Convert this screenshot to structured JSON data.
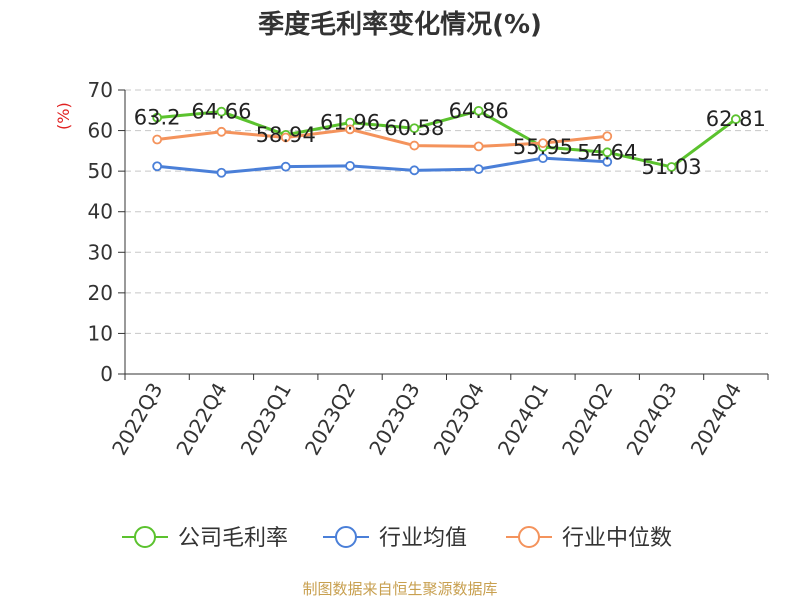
{
  "chart_data": {
    "type": "line",
    "title": "季度毛利率变化情况(%)",
    "ylabel": "(%)",
    "ylim": [
      0,
      70
    ],
    "yticks": [
      0,
      10,
      20,
      30,
      40,
      50,
      60,
      70
    ],
    "categories": [
      "2022Q3",
      "2022Q4",
      "2023Q1",
      "2023Q2",
      "2023Q3",
      "2023Q4",
      "2024Q1",
      "2024Q2",
      "2024Q3",
      "2024Q4"
    ],
    "grid": true,
    "legend_position": "bottom",
    "series": [
      {
        "name": "公司毛利率",
        "color": "#5bc22e",
        "values": [
          63.2,
          64.66,
          58.94,
          61.96,
          60.58,
          64.86,
          55.95,
          54.64,
          51.03,
          62.81
        ],
        "labels": [
          "63.2",
          "64.66",
          "58.94",
          "61.96",
          "60.58",
          "64.86",
          "55.95",
          "54.64",
          "51.03",
          "62.81"
        ]
      },
      {
        "name": "行业均值",
        "color": "#4a7fd8",
        "values": [
          51.2,
          49.6,
          51.1,
          51.3,
          50.2,
          50.5,
          53.2,
          52.3,
          null,
          null
        ]
      },
      {
        "name": "行业中位数",
        "color": "#f4935c",
        "values": [
          57.8,
          59.7,
          58.3,
          60.3,
          56.3,
          56.1,
          56.9,
          58.6,
          null,
          null
        ]
      }
    ]
  },
  "source": "制图数据来自恒生聚源数据库"
}
